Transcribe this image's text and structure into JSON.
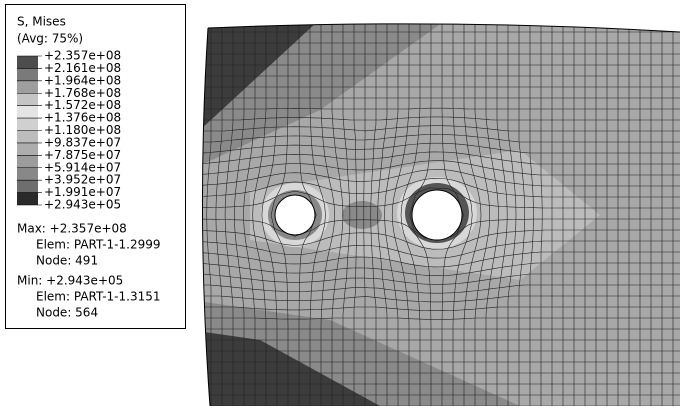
{
  "legend": {
    "title": "S, Mises",
    "subtitle": "(Avg: 75%)",
    "levels": [
      "+2.357e+08",
      "+2.161e+08",
      "+1.964e+08",
      "+1.768e+08",
      "+1.572e+08",
      "+1.376e+08",
      "+1.180e+08",
      "+9.837e+07",
      "+7.875e+07",
      "+5.914e+07",
      "+3.952e+07",
      "+1.991e+07",
      "+2.943e+05"
    ],
    "colors": [
      "#4d4d4d",
      "#7a7a7a",
      "#9e9e9e",
      "#c4c4c4",
      "#e4e4e4",
      "#d0d0d0",
      "#bcbcbc",
      "#adadad",
      "#9c9c9c",
      "#888888",
      "#6e6e6e",
      "#2a2a2a"
    ]
  },
  "max": {
    "label": "Max: +2.357e+08",
    "elem": "Elem: PART-1-1.2999",
    "node": "Node: 491"
  },
  "min": {
    "label": "Min: +2.943e+05",
    "elem": "Elem: PART-1-1.3151",
    "node": "Node: 564"
  }
}
